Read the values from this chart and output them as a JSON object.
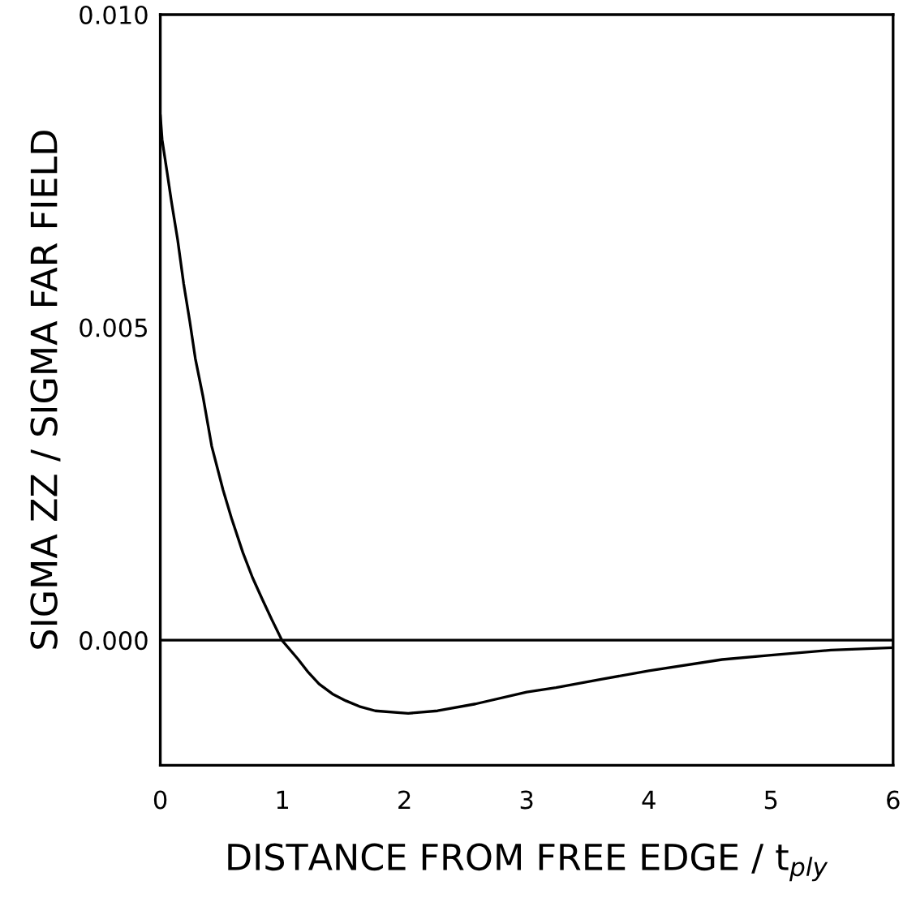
{
  "chart_data": {
    "type": "line",
    "xlabel": "DISTANCE FROM FREE EDGE / t$_{ply}$",
    "ylabel": "SIGMA ZZ / SIGMA FAR FIELD",
    "x": [
      0,
      0.015,
      0.054,
      0.092,
      0.142,
      0.191,
      0.241,
      0.287,
      0.349,
      0.421,
      0.514,
      0.583,
      0.676,
      0.755,
      0.836,
      0.915,
      0.995,
      1.126,
      1.214,
      1.3,
      1.41,
      1.52,
      1.63,
      1.76,
      2.03,
      2.27,
      2.58,
      3.0,
      3.24,
      3.6,
      4.0,
      4.6,
      5.0,
      5.49,
      6.0
    ],
    "series": [
      {
        "color": "#000000",
        "values": [
          0.0084,
          0.008,
          0.0075,
          0.007,
          0.0064,
          0.0057,
          0.0051,
          0.0045,
          0.0039,
          0.0031,
          0.0024,
          0.00195,
          0.0014,
          0.001,
          0.00065,
          0.00032,
          0,
          -0.0003,
          -0.00052,
          -0.0007,
          -0.00086,
          -0.00097,
          -0.00106,
          -0.00113,
          -0.00117,
          -0.00113,
          -0.00102,
          -0.00083,
          -0.00076,
          -0.00063,
          -0.00049,
          -0.00031,
          -0.00024,
          -0.00016,
          -0.00012
        ]
      }
    ],
    "xlim": [
      0,
      6
    ],
    "ylim": [
      -0.002,
      0.01
    ],
    "xticks": [
      0,
      1,
      2,
      3,
      4,
      5,
      6
    ],
    "yticks": [
      {
        "value": 0,
        "label": "0.000"
      },
      {
        "value": 0.005,
        "label": "0.005"
      },
      {
        "value": 0.01,
        "label": "0.010"
      }
    ],
    "ref_lines": [
      {
        "axis": "y",
        "value": 0,
        "color": "#000000"
      }
    ],
    "line_style": "solid"
  }
}
